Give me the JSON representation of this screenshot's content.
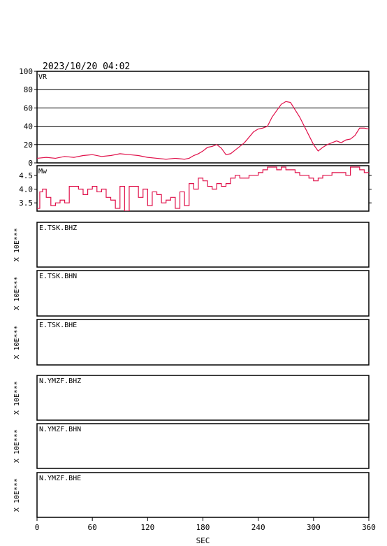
{
  "header": {
    "datetime": "2023/10/20 04:02"
  },
  "chart_data": [
    {
      "type": "line",
      "label": "VR",
      "ylim": [
        0,
        100
      ],
      "yticks": [
        "100",
        "80",
        "60",
        "40",
        "20",
        "0"
      ],
      "grid": true,
      "color": "#e0104a",
      "series": [
        {
          "x": [
            0,
            10,
            20,
            30,
            40,
            50,
            60,
            70,
            80,
            90,
            100,
            110,
            120,
            130,
            140,
            150,
            160,
            165,
            170,
            175,
            180,
            185,
            190,
            195,
            200,
            205,
            210,
            215,
            220,
            225,
            230,
            235,
            240,
            245,
            250,
            255,
            260,
            265,
            270,
            275,
            280,
            285,
            290,
            295,
            300,
            305,
            310,
            315,
            320,
            325,
            330,
            335,
            340,
            345,
            350,
            355,
            360
          ],
          "y": [
            5,
            6,
            5,
            7,
            6,
            8,
            9,
            7,
            8,
            10,
            9,
            8,
            6,
            5,
            4,
            5,
            4,
            5,
            8,
            10,
            13,
            17,
            18,
            20,
            16,
            9,
            10,
            14,
            18,
            22,
            28,
            34,
            37,
            38,
            40,
            50,
            57,
            64,
            67,
            66,
            58,
            50,
            40,
            30,
            20,
            13,
            17,
            20,
            22,
            24,
            22,
            25,
            26,
            30,
            38,
            38,
            37
          ]
        }
      ]
    },
    {
      "type": "line",
      "label": "Mw",
      "ylim": [
        3.2,
        4.85
      ],
      "yticks": [
        "4.5",
        "4.0",
        "3.5"
      ],
      "grid": false,
      "color": "#e0104a",
      "series": [
        {
          "x": [
            0,
            3,
            6,
            10,
            15,
            20,
            25,
            30,
            35,
            40,
            45,
            50,
            55,
            60,
            65,
            70,
            75,
            80,
            85,
            90,
            95,
            100,
            105,
            110,
            115,
            120,
            125,
            130,
            135,
            140,
            145,
            150,
            155,
            160,
            165,
            170,
            175,
            180,
            185,
            190,
            195,
            200,
            205,
            210,
            215,
            220,
            225,
            230,
            235,
            240,
            245,
            250,
            255,
            260,
            265,
            270,
            275,
            280,
            285,
            290,
            295,
            300,
            305,
            310,
            315,
            320,
            325,
            330,
            335,
            340,
            345,
            350,
            355,
            360
          ],
          "y": [
            3.3,
            3.9,
            4.0,
            3.7,
            3.4,
            3.5,
            3.6,
            3.5,
            4.1,
            4.1,
            4.0,
            3.8,
            4.0,
            4.1,
            3.9,
            4.0,
            3.7,
            3.6,
            3.3,
            4.1,
            3.2,
            4.1,
            4.1,
            3.7,
            4.0,
            3.4,
            3.9,
            3.8,
            3.5,
            3.6,
            3.7,
            3.3,
            3.9,
            3.4,
            4.2,
            4.0,
            4.4,
            4.3,
            4.1,
            4.0,
            4.2,
            4.1,
            4.2,
            4.4,
            4.5,
            4.4,
            4.4,
            4.5,
            4.5,
            4.6,
            4.7,
            4.8,
            4.8,
            4.7,
            4.8,
            4.7,
            4.7,
            4.6,
            4.5,
            4.5,
            4.4,
            4.3,
            4.4,
            4.5,
            4.5,
            4.6,
            4.6,
            4.6,
            4.5,
            4.8,
            4.8,
            4.7,
            4.6,
            4.6
          ]
        }
      ]
    }
  ],
  "traces": [
    {
      "label": "E.TSK.BHZ",
      "scale": "X 10E***"
    },
    {
      "label": "E.TSK.BHN",
      "scale": "X 10E***"
    },
    {
      "label": "E.TSK.BHE",
      "scale": "X 10E***"
    },
    {
      "label": "N.YMZF.BHZ",
      "scale": "X 10E***"
    },
    {
      "label": "N.YMZF.BHN",
      "scale": "X 10E***"
    },
    {
      "label": "N.YMZF.BHE",
      "scale": "X 10E***"
    }
  ],
  "xaxis": {
    "label": "SEC",
    "xlim": [
      0,
      360
    ],
    "ticks": [
      "0",
      "60",
      "120",
      "180",
      "240",
      "300",
      "360"
    ]
  }
}
